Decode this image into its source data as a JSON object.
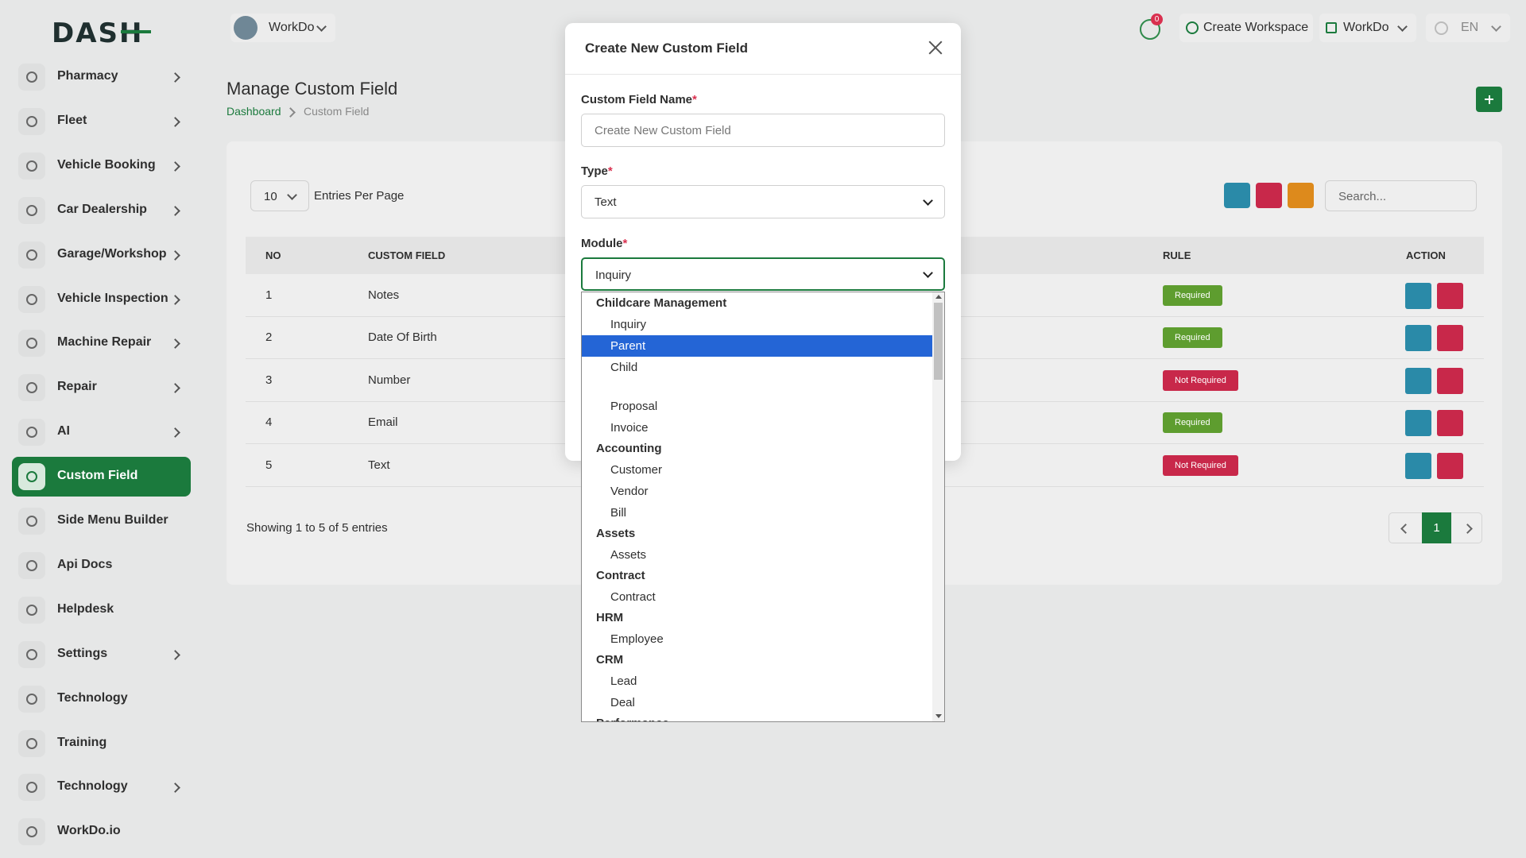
{
  "brand": "DASH",
  "header": {
    "workspace": "WorkDo",
    "notifications": "0",
    "create_workspace": "Create Workspace",
    "workspace_menu": "WorkDo",
    "language": "EN"
  },
  "sidebar": {
    "items": [
      {
        "label": "Pharmacy",
        "submenu": true
      },
      {
        "label": "Fleet",
        "submenu": true
      },
      {
        "label": "Vehicle Booking",
        "submenu": true
      },
      {
        "label": "Car Dealership",
        "submenu": true
      },
      {
        "label": "Garage/Workshop",
        "submenu": true
      },
      {
        "label": "Vehicle Inspection",
        "submenu": true
      },
      {
        "label": "Machine Repair",
        "submenu": true
      },
      {
        "label": "Repair",
        "submenu": true
      },
      {
        "label": "AI",
        "submenu": true
      },
      {
        "label": "Custom Field",
        "submenu": false,
        "active": true
      },
      {
        "label": "Side Menu Builder",
        "submenu": false
      },
      {
        "label": "Api Docs",
        "submenu": false
      },
      {
        "label": "Helpdesk",
        "submenu": false
      },
      {
        "label": "Settings",
        "submenu": true
      },
      {
        "label": "Technology",
        "submenu": false
      },
      {
        "label": "Training",
        "submenu": false
      },
      {
        "label": "Technology",
        "submenu": true
      },
      {
        "label": "WorkDo.io",
        "submenu": false
      }
    ]
  },
  "page": {
    "title": "Manage Custom Field",
    "breadcrumb": [
      "Dashboard",
      "Custom Field"
    ]
  },
  "table": {
    "page_length": "10",
    "page_length_label": "Entries Per Page",
    "search_placeholder": "Search...",
    "columns": [
      "NO",
      "CUSTOM FIELD",
      "RULE",
      "ACTION"
    ],
    "rows": [
      {
        "no": 1,
        "name": "Notes",
        "rule": "Required",
        "required": true
      },
      {
        "no": 2,
        "name": "Date Of Birth",
        "rule": "Required",
        "required": true
      },
      {
        "no": 3,
        "name": "Number",
        "rule": "Not Required",
        "required": false
      },
      {
        "no": 4,
        "name": "Email",
        "rule": "Required",
        "required": true
      },
      {
        "no": 5,
        "name": "Text",
        "rule": "Not Required",
        "required": false
      }
    ],
    "info": "Showing 1 to 5 of 5 entries",
    "current_page": "1"
  },
  "modal": {
    "title": "Create New Custom Field",
    "required_mark": "*",
    "name_label": "Custom Field Name",
    "name_placeholder": "Create New Custom Field",
    "type_label": "Type",
    "type_value": "Text",
    "module_label": "Module",
    "module_value": "Inquiry"
  },
  "module_options": [
    {
      "group": "Childcare Management",
      "options": [
        "Inquiry",
        "Parent",
        "Child"
      ]
    },
    {
      "group": null,
      "options": [
        "Proposal",
        "Invoice"
      ]
    },
    {
      "group": "Accounting",
      "options": [
        "Customer",
        "Vendor",
        "Bill"
      ]
    },
    {
      "group": "Assets",
      "options": [
        "Assets"
      ]
    },
    {
      "group": "Contract",
      "options": [
        "Contract"
      ]
    },
    {
      "group": "HRM",
      "options": [
        "Employee"
      ]
    },
    {
      "group": "CRM",
      "options": [
        "Lead",
        "Deal"
      ]
    },
    {
      "group": "Performance",
      "options": []
    }
  ],
  "selected_option": "Parent"
}
